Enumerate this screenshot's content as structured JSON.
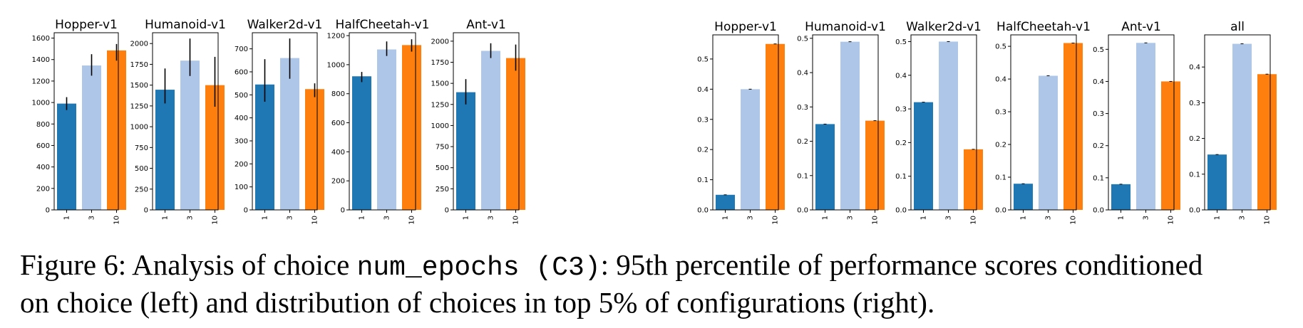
{
  "colors": {
    "c1": "#1f77b4",
    "c3": "#aec7e8",
    "c10": "#ff7f0e",
    "err": "#000000"
  },
  "caption": {
    "prefix": "Figure 6: Analysis of choice ",
    "code": "num_epochs (C3)",
    "suffix_line1": ": 95th percentile of performance scores conditioned",
    "line2": "on choice (left) and distribution of choices in top 5% of configurations (right)."
  },
  "chart_data": [
    {
      "type": "bar",
      "group": "left",
      "title": "Hopper-v1",
      "categories": [
        "1",
        "3",
        "10"
      ],
      "values": [
        990,
        1345,
        1485
      ],
      "errors": [
        [
          930,
          1050
        ],
        [
          1250,
          1450
        ],
        [
          1390,
          1545
        ]
      ],
      "ylim": [
        0,
        1650
      ],
      "yticks": [
        0,
        200,
        400,
        600,
        800,
        1000,
        1200,
        1400,
        1600
      ],
      "ytick_labels": [
        "0",
        "200",
        "400",
        "600",
        "800",
        "1000",
        "1200",
        "1400",
        "1600"
      ]
    },
    {
      "type": "bar",
      "group": "left",
      "title": "Humanoid-v1",
      "categories": [
        "1",
        "3",
        "10"
      ],
      "values": [
        1445,
        1795,
        1500
      ],
      "errors": [
        [
          1280,
          1700
        ],
        [
          1610,
          2060
        ],
        [
          1240,
          1840
        ]
      ],
      "ylim": [
        0,
        2130
      ],
      "yticks": [
        0,
        250,
        500,
        750,
        1000,
        1250,
        1500,
        1750,
        2000
      ],
      "ytick_labels": [
        "0",
        "250",
        "500",
        "750",
        "1000",
        "1250",
        "1500",
        "1750",
        "2000"
      ]
    },
    {
      "type": "bar",
      "group": "left",
      "title": "Walker2d-v1",
      "categories": [
        "1",
        "3",
        "10"
      ],
      "values": [
        545,
        660,
        525
      ],
      "errors": [
        [
          470,
          655
        ],
        [
          570,
          745
        ],
        [
          490,
          550
        ]
      ],
      "ylim": [
        0,
        770
      ],
      "yticks": [
        0,
        100,
        200,
        300,
        400,
        500,
        600,
        700
      ],
      "ytick_labels": [
        "0",
        "100",
        "200",
        "300",
        "400",
        "500",
        "600",
        "700"
      ]
    },
    {
      "type": "bar",
      "group": "left",
      "title": "HalfCheetah-v1",
      "categories": [
        "1",
        "3",
        "10"
      ],
      "values": [
        920,
        1105,
        1135
      ],
      "errors": [
        [
          880,
          950
        ],
        [
          1060,
          1160
        ],
        [
          1090,
          1175
        ]
      ],
      "ylim": [
        0,
        1220
      ],
      "yticks": [
        0,
        200,
        400,
        600,
        800,
        1000,
        1200
      ],
      "ytick_labels": [
        "0",
        "200",
        "400",
        "600",
        "800",
        "1000",
        "1200"
      ]
    },
    {
      "type": "bar",
      "group": "left",
      "title": "Ant-v1",
      "categories": [
        "1",
        "3",
        "10"
      ],
      "values": [
        1395,
        1885,
        1800
      ],
      "errors": [
        [
          1250,
          1550
        ],
        [
          1800,
          1975
        ],
        [
          1650,
          1960
        ]
      ],
      "ylim": [
        0,
        2100
      ],
      "yticks": [
        0,
        250,
        500,
        750,
        1000,
        1250,
        1500,
        1750,
        2000
      ],
      "ytick_labels": [
        "0",
        "250",
        "500",
        "750",
        "1000",
        "1250",
        "1500",
        "1750",
        "2000"
      ]
    },
    {
      "type": "bar",
      "group": "right",
      "title": "Hopper-v1",
      "categories": [
        "1",
        "3",
        "10"
      ],
      "values": [
        0.05,
        0.4,
        0.55
      ],
      "ylim": [
        0,
        0.58
      ],
      "yticks": [
        0,
        0.1,
        0.2,
        0.3,
        0.4,
        0.5
      ],
      "ytick_labels": [
        "0.0",
        "0.1",
        "0.2",
        "0.3",
        "0.4",
        "0.5"
      ]
    },
    {
      "type": "bar",
      "group": "right",
      "title": "Humanoid-v1",
      "categories": [
        "1",
        "3",
        "10"
      ],
      "values": [
        0.25,
        0.49,
        0.26
      ],
      "ylim": [
        0,
        0.51
      ],
      "yticks": [
        0,
        0.1,
        0.2,
        0.3,
        0.4,
        0.5
      ],
      "ytick_labels": [
        "0.0",
        "0.1",
        "0.2",
        "0.3",
        "0.4",
        "0.5"
      ]
    },
    {
      "type": "bar",
      "group": "right",
      "title": "Walker2d-v1",
      "categories": [
        "1",
        "3",
        "10"
      ],
      "values": [
        0.32,
        0.5,
        0.18
      ],
      "ylim": [
        0,
        0.52
      ],
      "yticks": [
        0,
        0.1,
        0.2,
        0.3,
        0.4,
        0.5
      ],
      "ytick_labels": [
        "0.0",
        "0.1",
        "0.2",
        "0.3",
        "0.4",
        "0.5"
      ]
    },
    {
      "type": "bar",
      "group": "right",
      "title": "HalfCheetah-v1",
      "categories": [
        "1",
        "3",
        "10"
      ],
      "values": [
        0.08,
        0.41,
        0.51
      ],
      "ylim": [
        0,
        0.535
      ],
      "yticks": [
        0,
        0.1,
        0.2,
        0.3,
        0.4,
        0.5
      ],
      "ytick_labels": [
        "0.0",
        "0.1",
        "0.2",
        "0.3",
        "0.4",
        "0.5"
      ]
    },
    {
      "type": "bar",
      "group": "right",
      "title": "Ant-v1",
      "categories": [
        "1",
        "3",
        "10"
      ],
      "values": [
        0.08,
        0.52,
        0.4
      ],
      "ylim": [
        0,
        0.545
      ],
      "yticks": [
        0,
        0.1,
        0.2,
        0.3,
        0.4,
        0.5
      ],
      "ytick_labels": [
        "0.0",
        "0.1",
        "0.2",
        "0.3",
        "0.4",
        "0.5"
      ]
    },
    {
      "type": "bar",
      "group": "right",
      "title": "all",
      "categories": [
        "1",
        "3",
        "10"
      ],
      "values": [
        0.155,
        0.465,
        0.38
      ],
      "ylim": [
        0,
        0.49
      ],
      "yticks": [
        0,
        0.1,
        0.2,
        0.3,
        0.4
      ],
      "ytick_labels": [
        "0.0",
        "0.1",
        "0.2",
        "0.3",
        "0.4"
      ]
    }
  ]
}
